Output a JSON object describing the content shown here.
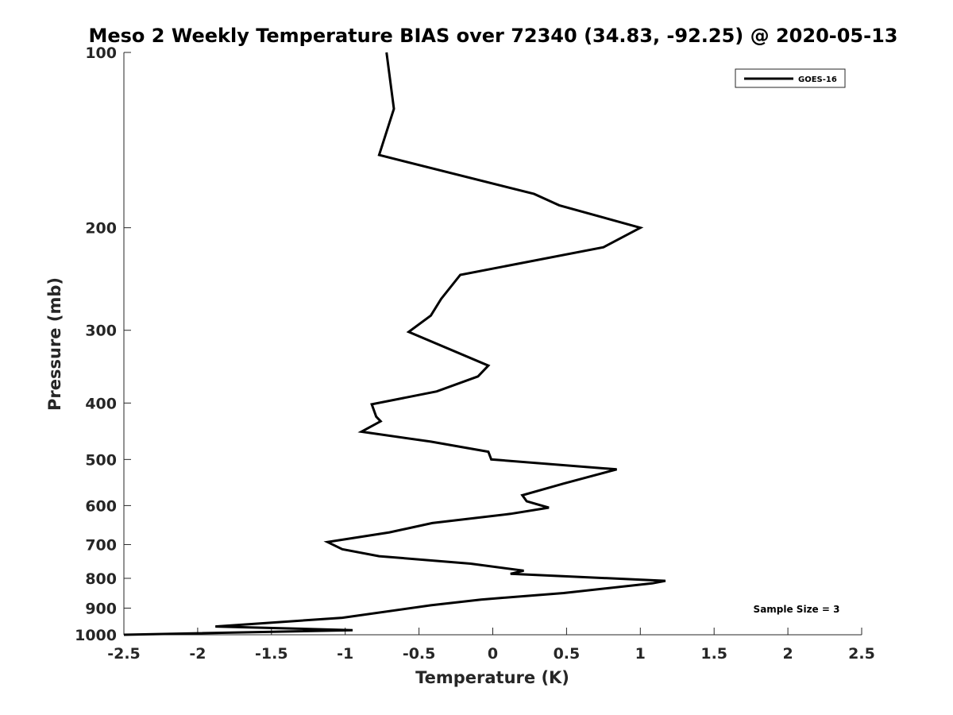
{
  "chart_data": {
    "type": "line",
    "title": "Meso 2 Weekly Temperature BIAS over 72340 (34.83, -92.25) @ 2020-05-13",
    "xlabel": "Temperature (K)",
    "ylabel": "Pressure (mb)",
    "xlim": [
      -2.5,
      2.5
    ],
    "ylim": [
      1000,
      100
    ],
    "y_scale": "log",
    "y_reversed": true,
    "x_ticks": [
      "-2.5",
      "-2",
      "-1.5",
      "-1",
      "-0.5",
      "0",
      "0.5",
      "1",
      "1.5",
      "2",
      "2.5"
    ],
    "y_ticks": [
      "100",
      "200",
      "300",
      "400",
      "500",
      "600",
      "700",
      "800",
      "900",
      "1000"
    ],
    "grid": false,
    "legend": {
      "position": "top-right"
    },
    "annotation": "Sample Size = 3",
    "series": [
      {
        "name": "GOES-16",
        "color": "#000000",
        "points": [
          [
            -0.72,
            100
          ],
          [
            -0.67,
            125
          ],
          [
            -0.77,
            150
          ],
          [
            0.28,
            175
          ],
          [
            0.45,
            183
          ],
          [
            1.0,
            200
          ],
          [
            0.75,
            216
          ],
          [
            -0.22,
            241
          ],
          [
            -0.35,
            265
          ],
          [
            -0.42,
            283
          ],
          [
            -0.57,
            302
          ],
          [
            -0.03,
            345
          ],
          [
            -0.1,
            360
          ],
          [
            -0.38,
            382
          ],
          [
            -0.82,
            402
          ],
          [
            -0.79,
            422
          ],
          [
            -0.76,
            430
          ],
          [
            -0.89,
            448
          ],
          [
            -0.42,
            466
          ],
          [
            -0.03,
            485
          ],
          [
            -0.01,
            500
          ],
          [
            0.84,
            520
          ],
          [
            0.48,
            550
          ],
          [
            0.2,
            576
          ],
          [
            0.23,
            590
          ],
          [
            0.38,
            605
          ],
          [
            0.12,
            620
          ],
          [
            -0.41,
            643
          ],
          [
            -0.7,
            667
          ],
          [
            -1.12,
            693
          ],
          [
            -1.02,
            713
          ],
          [
            -0.77,
            733
          ],
          [
            -0.15,
            755
          ],
          [
            0.21,
            776
          ],
          [
            0.12,
            786
          ],
          [
            1.17,
            808
          ],
          [
            1.08,
            816
          ],
          [
            0.48,
            848
          ],
          [
            -0.08,
            870
          ],
          [
            -0.42,
            890
          ],
          [
            -1.02,
            935
          ],
          [
            -1.88,
            968
          ],
          [
            -0.95,
            982
          ],
          [
            -2.5,
            1000
          ]
        ]
      }
    ]
  }
}
